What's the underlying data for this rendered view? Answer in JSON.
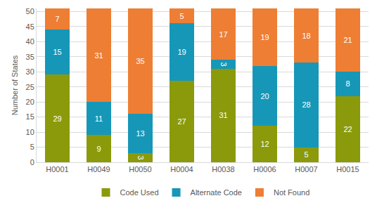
{
  "chart_data": {
    "type": "bar",
    "stacked": true,
    "y_label": "Number of States",
    "categories": [
      "H0001",
      "H0049",
      "H0050",
      "H0004",
      "H0038",
      "H0006",
      "H0007",
      "H0015"
    ],
    "series": [
      {
        "name": "Code Used",
        "color": "#8a9a0b",
        "values": [
          29,
          9,
          3,
          27,
          31,
          12,
          5,
          22
        ]
      },
      {
        "name": "Alternate Code",
        "color": "#1697b7",
        "values": [
          15,
          11,
          13,
          19,
          3,
          20,
          28,
          8
        ]
      },
      {
        "name": "Not Found",
        "color": "#ee7e33",
        "values": [
          7,
          31,
          35,
          5,
          17,
          19,
          18,
          21
        ]
      }
    ],
    "ylim": [
      0,
      51
    ],
    "yticks": [
      0,
      5,
      10,
      15,
      20,
      25,
      30,
      35,
      40,
      45,
      50
    ],
    "grid": true,
    "legend": "bottom",
    "data_labels": true
  }
}
